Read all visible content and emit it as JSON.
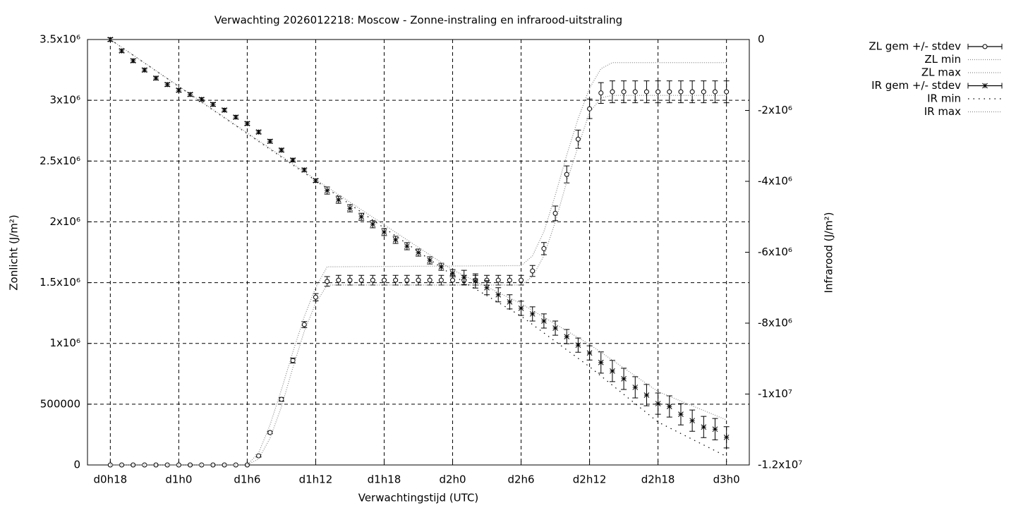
{
  "chart_data": {
    "type": "line",
    "title": "Verwachting 2026012218: Moscow - Zonne-instraling en infrarood-uitstraling",
    "xlabel": "Verwachtingstijd (UTC)",
    "ylabel": "Zonlicht (J/m²)",
    "y2label": "Infrarood (J/m²)",
    "grid": true,
    "legend": "outside-right-top",
    "xlim": [
      16,
      74
    ],
    "xticks": [
      {
        "value": 18,
        "label": "d0h18"
      },
      {
        "value": 24,
        "label": "d1h0"
      },
      {
        "value": 30,
        "label": "d1h6"
      },
      {
        "value": 36,
        "label": "d1h12"
      },
      {
        "value": 42,
        "label": "d1h18"
      },
      {
        "value": 48,
        "label": "d2h0"
      },
      {
        "value": 54,
        "label": "d2h6"
      },
      {
        "value": 60,
        "label": "d2h12"
      },
      {
        "value": 66,
        "label": "d2h18"
      },
      {
        "value": 72,
        "label": "d3h0"
      }
    ],
    "ylim": [
      0,
      3500000
    ],
    "yticks": [
      0,
      500000,
      {
        "value": 1000000,
        "label": "1x10⁶"
      },
      {
        "value": 1500000,
        "label": "1.5x10⁶"
      },
      {
        "value": 2000000,
        "label": "2x10⁶"
      },
      {
        "value": 2500000,
        "label": "2.5x10⁶"
      },
      {
        "value": 3000000,
        "label": "3x10⁶"
      },
      {
        "value": 3500000,
        "label": "3.5x10⁶"
      }
    ],
    "y2lim": [
      -12000000,
      0
    ],
    "y2ticks": [
      0,
      {
        "value": -2000000,
        "label": "-2x10⁶"
      },
      {
        "value": -4000000,
        "label": "-4x10⁶"
      },
      {
        "value": -6000000,
        "label": "-6x10⁶"
      },
      {
        "value": -8000000,
        "label": "-8x10⁶"
      },
      {
        "value": -10000000,
        "label": "-1x10⁷"
      },
      {
        "value": -12000000,
        "label": "-1.2x10⁷"
      }
    ],
    "series": [
      {
        "name": "ZL gem +/- stdev",
        "color": "#000000",
        "style": "errorbars",
        "marker": "circle",
        "axis": "y",
        "x": [
          18,
          19,
          20,
          21,
          22,
          23,
          24,
          25,
          26,
          27,
          28,
          29,
          30,
          31,
          32,
          33,
          34,
          35,
          36,
          37,
          38,
          39,
          40,
          41,
          42,
          43,
          44,
          45,
          46,
          47,
          48,
          49,
          50,
          51,
          52,
          53,
          54,
          55,
          56,
          57,
          58,
          59,
          60,
          61,
          62,
          63,
          64,
          65,
          66,
          67,
          68,
          69,
          70,
          71,
          72
        ],
        "values": [
          0,
          0,
          0,
          0,
          0,
          0,
          0,
          0,
          0,
          0,
          0,
          0,
          0,
          75000,
          267000,
          540000,
          859000,
          1155000,
          1380000,
          1510000,
          1520000,
          1520000,
          1520000,
          1520000,
          1520000,
          1520000,
          1520000,
          1520000,
          1520000,
          1520000,
          1520000,
          1520000,
          1520000,
          1520000,
          1520000,
          1520000,
          1520000,
          1596000,
          1780000,
          2070000,
          2390000,
          2680000,
          2930000,
          3060000,
          3070000,
          3070000,
          3070000,
          3070000,
          3070000,
          3070000,
          3070000,
          3070000,
          3070000,
          3070000,
          3070000
        ],
        "errors": [
          0,
          0,
          0,
          0,
          0,
          0,
          0,
          0,
          0,
          0,
          0,
          0,
          0,
          10000,
          10000,
          15000,
          20000,
          25000,
          30000,
          40000,
          40000,
          40000,
          40000,
          40000,
          40000,
          40000,
          40000,
          40000,
          40000,
          40000,
          40000,
          40000,
          40000,
          40000,
          40000,
          40000,
          40000,
          45000,
          50000,
          60000,
          70000,
          75000,
          80000,
          85000,
          90000,
          90000,
          90000,
          90000,
          90000,
          90000,
          90000,
          90000,
          90000,
          90000,
          90000
        ]
      },
      {
        "name": "ZL min",
        "color": "#888888",
        "style": "dotted",
        "axis": "y",
        "x": [
          18,
          30,
          31,
          32,
          33,
          34,
          35,
          36,
          37,
          54,
          55,
          56,
          57,
          58,
          59,
          60,
          61,
          62,
          72
        ],
        "values": [
          0,
          0,
          50000,
          220000,
          480000,
          800000,
          1100000,
          1330000,
          1480000,
          1480000,
          1550000,
          1720000,
          2000000,
          2330000,
          2620000,
          2900000,
          3020000,
          3040000,
          3040000
        ]
      },
      {
        "name": "ZL max",
        "color": "#888888",
        "style": "dotted",
        "axis": "y",
        "x": [
          18,
          30,
          31,
          32,
          33,
          34,
          35,
          36,
          37,
          54,
          55,
          56,
          57,
          58,
          59,
          60,
          61,
          62,
          72
        ],
        "values": [
          0,
          0,
          100000,
          330000,
          620000,
          930000,
          1220000,
          1460000,
          1630000,
          1640000,
          1720000,
          1920000,
          2220000,
          2550000,
          2850000,
          3100000,
          3260000,
          3310000,
          3310000
        ]
      },
      {
        "name": "IR gem +/- stdev",
        "color": "#000000",
        "style": "errorbars",
        "marker": "star",
        "axis": "y2",
        "x": [
          18,
          19,
          20,
          21,
          22,
          23,
          24,
          25,
          26,
          27,
          28,
          29,
          30,
          31,
          32,
          33,
          34,
          35,
          36,
          37,
          38,
          39,
          40,
          41,
          42,
          43,
          44,
          45,
          46,
          47,
          48,
          49,
          50,
          51,
          52,
          53,
          54,
          55,
          56,
          57,
          58,
          59,
          60,
          61,
          62,
          63,
          64,
          65,
          66,
          67,
          68,
          69,
          70,
          71,
          72
        ],
        "values": [
          0,
          -320000,
          -600000,
          -860000,
          -1090000,
          -1270000,
          -1430000,
          -1550000,
          -1690000,
          -1830000,
          -1990000,
          -2190000,
          -2370000,
          -2610000,
          -2870000,
          -3120000,
          -3400000,
          -3680000,
          -3980000,
          -4260000,
          -4520000,
          -4760000,
          -5000000,
          -5210000,
          -5430000,
          -5650000,
          -5830000,
          -6010000,
          -6230000,
          -6410000,
          -6590000,
          -6710000,
          -6810000,
          -7000000,
          -7200000,
          -7400000,
          -7580000,
          -7740000,
          -7940000,
          -8140000,
          -8380000,
          -8620000,
          -8840000,
          -9110000,
          -9350000,
          -9570000,
          -9810000,
          -10030000,
          -10270000,
          -10350000,
          -10570000,
          -10750000,
          -10930000,
          -10990000,
          -11220000
        ],
        "errors": [
          50000,
          50000,
          50000,
          50000,
          50000,
          50000,
          50000,
          50000,
          50000,
          50000,
          50000,
          50000,
          50000,
          50000,
          50000,
          50000,
          50000,
          50000,
          50000,
          100000,
          100000,
          100000,
          100000,
          100000,
          100000,
          100000,
          100000,
          100000,
          100000,
          100000,
          100000,
          200000,
          200000,
          200000,
          200000,
          200000,
          200000,
          200000,
          200000,
          200000,
          200000,
          200000,
          200000,
          300000,
          300000,
          300000,
          300000,
          300000,
          300000,
          300000,
          300000,
          300000,
          300000,
          300000,
          300000
        ]
      },
      {
        "name": "IR min",
        "color": "#000000",
        "style": "dotted-wide",
        "axis": "y2",
        "x": [
          18,
          36,
          48,
          54,
          60,
          66,
          72
        ],
        "values": [
          0,
          -3980000,
          -6650000,
          -7800000,
          -9230000,
          -10790000,
          -11760000
        ]
      },
      {
        "name": "IR max",
        "color": "#888888",
        "style": "dotted",
        "axis": "y2",
        "x": [
          18,
          36,
          48,
          54,
          60,
          66,
          72
        ],
        "values": [
          0,
          -3950000,
          -6500000,
          -7450000,
          -8600000,
          -9930000,
          -10730000
        ]
      }
    ]
  }
}
